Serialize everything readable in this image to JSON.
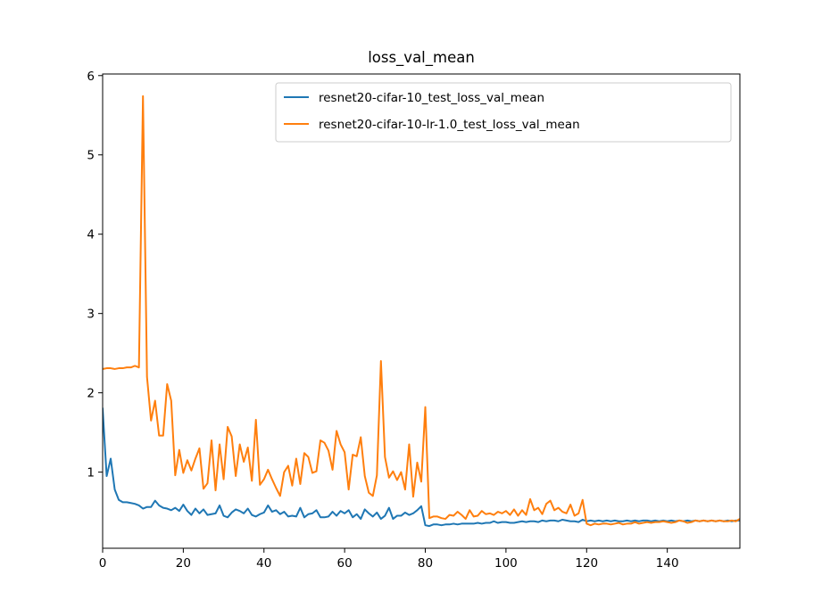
{
  "chart_data": {
    "type": "line",
    "title": "loss_val_mean",
    "xlabel": "",
    "ylabel": "",
    "xlim": [
      0,
      158
    ],
    "ylim": [
      0.04,
      6.02
    ],
    "xticks": [
      0,
      20,
      40,
      60,
      80,
      100,
      120,
      140
    ],
    "yticks": [
      1,
      2,
      3,
      4,
      5,
      6
    ],
    "grid": false,
    "legend_position": "top-right",
    "series": [
      {
        "name": "resnet20-cifar-10_test_loss_val_mean",
        "color": "#1f77b4",
        "x": [
          0,
          1,
          2,
          3,
          4,
          5,
          6,
          7,
          8,
          9,
          10,
          11,
          12,
          13,
          14,
          15,
          16,
          17,
          18,
          19,
          20,
          21,
          22,
          23,
          24,
          25,
          26,
          27,
          28,
          29,
          30,
          31,
          32,
          33,
          34,
          35,
          36,
          37,
          38,
          39,
          40,
          41,
          42,
          43,
          44,
          45,
          46,
          47,
          48,
          49,
          50,
          51,
          52,
          53,
          54,
          55,
          56,
          57,
          58,
          59,
          60,
          61,
          62,
          63,
          64,
          65,
          66,
          67,
          68,
          69,
          70,
          71,
          72,
          73,
          74,
          75,
          76,
          77,
          78,
          79,
          80,
          81,
          82,
          83,
          84,
          85,
          86,
          87,
          88,
          89,
          90,
          91,
          92,
          93,
          94,
          95,
          96,
          97,
          98,
          99,
          100,
          101,
          102,
          103,
          104,
          105,
          106,
          107,
          108,
          109,
          110,
          111,
          112,
          113,
          114,
          115,
          116,
          117,
          118,
          119,
          120,
          121,
          122,
          123,
          124,
          125,
          126,
          127,
          128,
          129,
          130,
          131,
          132,
          133,
          134,
          135,
          136,
          137,
          138,
          139,
          140,
          141,
          142,
          143,
          144,
          145,
          146,
          147,
          148,
          149,
          150,
          151,
          152,
          153,
          154,
          155,
          156,
          157,
          158
        ],
        "y": [
          1.8,
          0.95,
          1.17,
          0.78,
          0.65,
          0.62,
          0.62,
          0.61,
          0.6,
          0.58,
          0.54,
          0.56,
          0.56,
          0.64,
          0.58,
          0.55,
          0.54,
          0.52,
          0.55,
          0.51,
          0.59,
          0.51,
          0.46,
          0.54,
          0.48,
          0.53,
          0.46,
          0.47,
          0.48,
          0.58,
          0.45,
          0.43,
          0.49,
          0.53,
          0.51,
          0.48,
          0.54,
          0.46,
          0.44,
          0.47,
          0.49,
          0.58,
          0.5,
          0.52,
          0.47,
          0.5,
          0.44,
          0.45,
          0.44,
          0.55,
          0.43,
          0.47,
          0.48,
          0.52,
          0.43,
          0.43,
          0.44,
          0.5,
          0.45,
          0.51,
          0.48,
          0.52,
          0.43,
          0.47,
          0.41,
          0.53,
          0.48,
          0.44,
          0.49,
          0.41,
          0.45,
          0.55,
          0.41,
          0.45,
          0.45,
          0.49,
          0.46,
          0.48,
          0.52,
          0.57,
          0.33,
          0.32,
          0.34,
          0.34,
          0.33,
          0.34,
          0.34,
          0.35,
          0.34,
          0.35,
          0.35,
          0.35,
          0.35,
          0.36,
          0.35,
          0.36,
          0.36,
          0.38,
          0.36,
          0.37,
          0.37,
          0.36,
          0.36,
          0.37,
          0.38,
          0.37,
          0.38,
          0.38,
          0.37,
          0.39,
          0.38,
          0.39,
          0.39,
          0.38,
          0.4,
          0.39,
          0.38,
          0.38,
          0.37,
          0.4,
          0.38,
          0.39,
          0.38,
          0.39,
          0.38,
          0.39,
          0.38,
          0.39,
          0.38,
          0.38,
          0.39,
          0.38,
          0.39,
          0.38,
          0.39,
          0.39,
          0.38,
          0.39,
          0.38,
          0.39,
          0.38,
          0.39,
          0.38,
          0.39,
          0.38,
          0.39,
          0.38,
          0.39,
          0.38,
          0.39,
          0.38,
          0.39,
          0.38,
          0.39,
          0.38,
          0.39,
          0.38,
          0.39,
          0.39
        ]
      },
      {
        "name": "resnet20-cifar-10-lr-1.0_test_loss_val_mean",
        "color": "#ff7f0e",
        "x": [
          0,
          1,
          2,
          3,
          4,
          5,
          6,
          7,
          8,
          9,
          10,
          11,
          12,
          13,
          14,
          15,
          16,
          17,
          18,
          19,
          20,
          21,
          22,
          23,
          24,
          25,
          26,
          27,
          28,
          29,
          30,
          31,
          32,
          33,
          34,
          35,
          36,
          37,
          38,
          39,
          40,
          41,
          42,
          43,
          44,
          45,
          46,
          47,
          48,
          49,
          50,
          51,
          52,
          53,
          54,
          55,
          56,
          57,
          58,
          59,
          60,
          61,
          62,
          63,
          64,
          65,
          66,
          67,
          68,
          69,
          70,
          71,
          72,
          73,
          74,
          75,
          76,
          77,
          78,
          79,
          80,
          81,
          82,
          83,
          84,
          85,
          86,
          87,
          88,
          89,
          90,
          91,
          92,
          93,
          94,
          95,
          96,
          97,
          98,
          99,
          100,
          101,
          102,
          103,
          104,
          105,
          106,
          107,
          108,
          109,
          110,
          111,
          112,
          113,
          114,
          115,
          116,
          117,
          118,
          119,
          120,
          121,
          122,
          123,
          124,
          125,
          126,
          127,
          128,
          129,
          130,
          131,
          132,
          133,
          134,
          135,
          136,
          137,
          138,
          139,
          140,
          141,
          142,
          143,
          144,
          145,
          146,
          147,
          148,
          149,
          150,
          151,
          152,
          153,
          154,
          155,
          156,
          157,
          158
        ],
        "y": [
          2.3,
          2.31,
          2.31,
          2.3,
          2.31,
          2.31,
          2.32,
          2.32,
          2.34,
          2.32,
          5.74,
          2.2,
          1.65,
          1.9,
          1.46,
          1.46,
          2.11,
          1.9,
          0.96,
          1.28,
          0.99,
          1.15,
          1.02,
          1.17,
          1.3,
          0.79,
          0.86,
          1.4,
          0.77,
          1.35,
          0.91,
          1.57,
          1.45,
          0.95,
          1.35,
          1.13,
          1.31,
          0.89,
          1.66,
          0.84,
          0.91,
          1.03,
          0.91,
          0.8,
          0.7,
          1.0,
          1.08,
          0.83,
          1.17,
          0.85,
          1.24,
          1.19,
          0.99,
          1.01,
          1.4,
          1.37,
          1.27,
          1.03,
          1.52,
          1.35,
          1.25,
          0.78,
          1.22,
          1.2,
          1.44,
          0.95,
          0.74,
          0.7,
          0.96,
          2.4,
          1.19,
          0.93,
          1.01,
          0.9,
          1.0,
          0.78,
          1.35,
          0.69,
          1.12,
          0.88,
          1.82,
          0.42,
          0.44,
          0.44,
          0.42,
          0.41,
          0.46,
          0.45,
          0.5,
          0.46,
          0.41,
          0.52,
          0.44,
          0.45,
          0.51,
          0.47,
          0.48,
          0.46,
          0.5,
          0.48,
          0.51,
          0.46,
          0.53,
          0.45,
          0.52,
          0.46,
          0.66,
          0.52,
          0.55,
          0.47,
          0.6,
          0.64,
          0.52,
          0.55,
          0.5,
          0.48,
          0.59,
          0.45,
          0.48,
          0.65,
          0.35,
          0.33,
          0.35,
          0.34,
          0.35,
          0.35,
          0.34,
          0.35,
          0.36,
          0.34,
          0.35,
          0.35,
          0.37,
          0.35,
          0.36,
          0.37,
          0.36,
          0.37,
          0.37,
          0.38,
          0.37,
          0.36,
          0.37,
          0.39,
          0.38,
          0.36,
          0.37,
          0.39,
          0.38,
          0.39,
          0.38,
          0.39,
          0.38,
          0.39,
          0.38,
          0.38,
          0.39,
          0.38,
          0.41
        ]
      }
    ]
  }
}
